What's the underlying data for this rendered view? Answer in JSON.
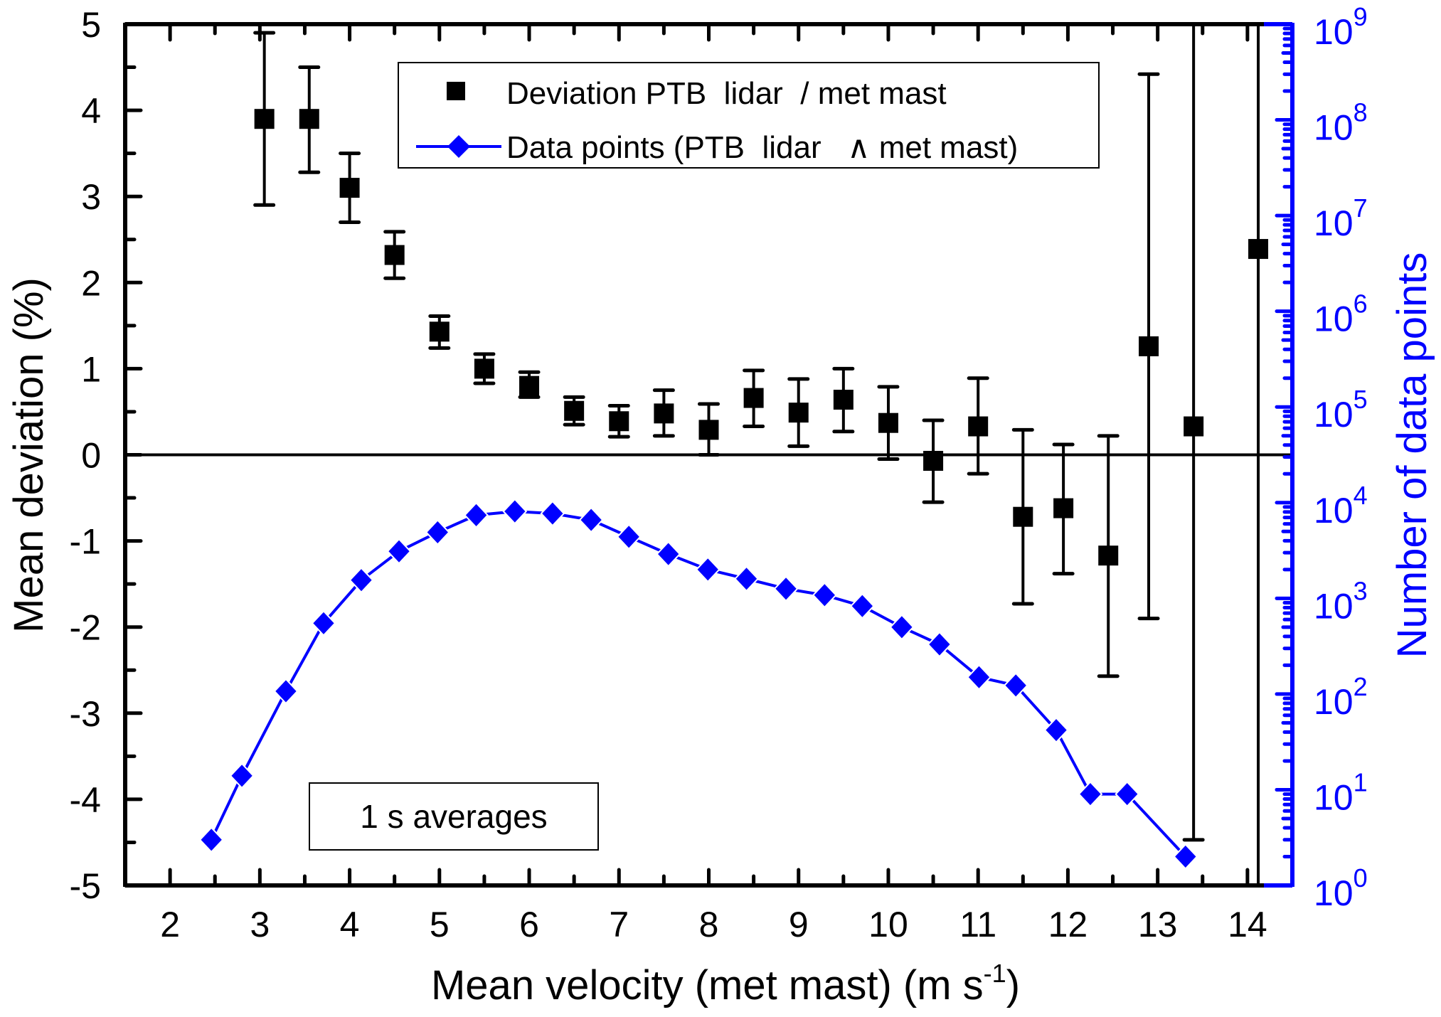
{
  "chart_data": {
    "type": "scatter",
    "title": "",
    "xlabel": "Mean velocity (met mast) (m s",
    "xlabel_superscript": "-1",
    "xlabel_close": ")",
    "ylabel": "Mean deviation (%)",
    "ylabel_right": "Number of data points",
    "xlim": [
      1.5,
      14.5
    ],
    "ylim": [
      -5,
      5
    ],
    "ylim_right_log10": [
      0,
      9
    ],
    "x_ticks": [
      2,
      3,
      4,
      5,
      6,
      7,
      8,
      9,
      10,
      11,
      12,
      13,
      14
    ],
    "x_tick_labels": [
      "2",
      "3",
      "4",
      "5",
      "6",
      "7",
      "8",
      "9",
      "10",
      "11",
      "12",
      "13",
      "14"
    ],
    "y_ticks": [
      5,
      4,
      3,
      2,
      1,
      0,
      -1,
      -2,
      -3,
      -4,
      -5
    ],
    "y_tick_labels": [
      "5",
      "4",
      "3",
      "2",
      "1",
      "0",
      "-1",
      "-2",
      "-3",
      "-4",
      "-5"
    ],
    "y_right_ticks_exponent": [
      0,
      1,
      2,
      3,
      4,
      5,
      6,
      7,
      8,
      9
    ],
    "y_right_tick_base": "10",
    "grid": false,
    "zero_line": true,
    "legend_position": "top-center",
    "annotation": "1 s averages",
    "annotation_position": "bottom-left",
    "colors": {
      "deviation": "#000000",
      "data_points": "#0000ff",
      "right_axis": "#0000ff"
    },
    "series": [
      {
        "name": "Deviation PTB lidar / met mast",
        "legend_label": "Deviation PTB  lidar  / met mast",
        "axis": "left",
        "marker": "square",
        "x": [
          3.05,
          3.55,
          4.0,
          4.5,
          5.0,
          5.5,
          6.0,
          6.5,
          7.0,
          7.5,
          8.0,
          8.5,
          9.0,
          9.5,
          10.0,
          10.5,
          11.0,
          11.5,
          11.95,
          12.45,
          12.9,
          13.4,
          14.12
        ],
        "y": [
          3.9,
          3.9,
          3.1,
          2.32,
          1.43,
          1.0,
          0.8,
          0.51,
          0.39,
          0.48,
          0.29,
          0.66,
          0.49,
          0.64,
          0.37,
          -0.07,
          0.33,
          -0.72,
          -0.62,
          -1.17,
          1.26,
          0.33,
          2.39
        ],
        "y_upper": [
          4.9,
          4.5,
          3.5,
          2.59,
          1.61,
          1.17,
          0.96,
          0.67,
          0.57,
          0.75,
          0.59,
          0.98,
          0.88,
          1.0,
          0.79,
          0.4,
          0.89,
          0.29,
          0.12,
          0.22,
          4.42,
          5.0,
          5.0
        ],
        "y_lower": [
          2.9,
          3.28,
          2.7,
          2.05,
          1.24,
          0.83,
          0.67,
          0.35,
          0.21,
          0.22,
          0.0,
          0.33,
          0.1,
          0.27,
          -0.05,
          -0.55,
          -0.22,
          -1.73,
          -1.38,
          -2.57,
          -1.9,
          -4.47,
          -5.0
        ]
      },
      {
        "name": "Data points (PTB lidar ∧ met mast)",
        "legend_label": "Data points (PTB  lidar   ∧ met mast)",
        "axis": "right",
        "scale": "log",
        "marker": "diamond",
        "line": true,
        "x": [
          2.46,
          2.8,
          3.29,
          3.71,
          4.13,
          4.55,
          4.98,
          5.41,
          5.84,
          6.26,
          6.69,
          7.11,
          7.55,
          7.99,
          8.42,
          8.86,
          9.29,
          9.71,
          10.15,
          10.57,
          11.01,
          11.42,
          11.87,
          12.25,
          12.66,
          13.31
        ],
        "y": [
          3,
          14,
          107,
          550,
          1550,
          3100,
          4900,
          7400,
          8100,
          7700,
          6600,
          4400,
          2900,
          2000,
          1600,
          1260,
          1080,
          830,
          500,
          330,
          150,
          123,
          42,
          9,
          9,
          2
        ]
      }
    ]
  }
}
